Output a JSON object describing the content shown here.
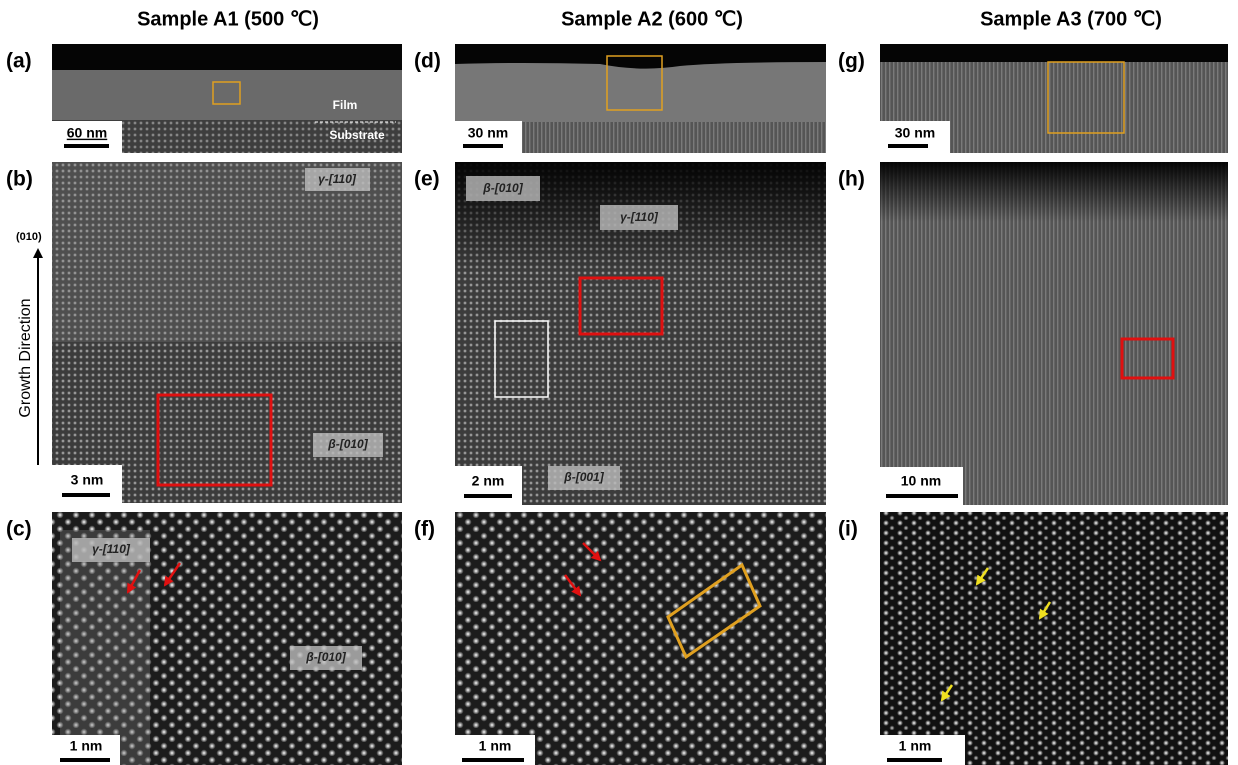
{
  "columns": [
    {
      "title": "Sample A1 (500 ℃)",
      "panels": [
        {
          "letter": "(a)",
          "scale_bar": "60 nm",
          "labels": [
            "Film",
            "Substrate"
          ]
        },
        {
          "letter": "(b)",
          "scale_bar": "3 nm",
          "labels": [
            "γ-[110]",
            "β-[010]"
          ]
        },
        {
          "letter": "(c)",
          "scale_bar": "1 nm",
          "labels": [
            "γ-[110]",
            "β-[010]"
          ]
        }
      ]
    },
    {
      "title": "Sample A2 (600 ℃)",
      "panels": [
        {
          "letter": "(d)",
          "scale_bar": "30 nm"
        },
        {
          "letter": "(e)",
          "scale_bar": "2 nm",
          "labels": [
            "β-[010]",
            "γ-[110]",
            "β-[001]"
          ]
        },
        {
          "letter": "(f)",
          "scale_bar": "1 nm"
        }
      ]
    },
    {
      "title": "Sample A3 (700 ℃)",
      "panels": [
        {
          "letter": "(g)",
          "scale_bar": "30 nm"
        },
        {
          "letter": "(h)",
          "scale_bar": "10 nm"
        },
        {
          "letter": "(i)",
          "scale_bar": "1 nm"
        }
      ]
    }
  ],
  "axis_annotation": {
    "direction": "(010)",
    "label": "Growth Direction"
  }
}
